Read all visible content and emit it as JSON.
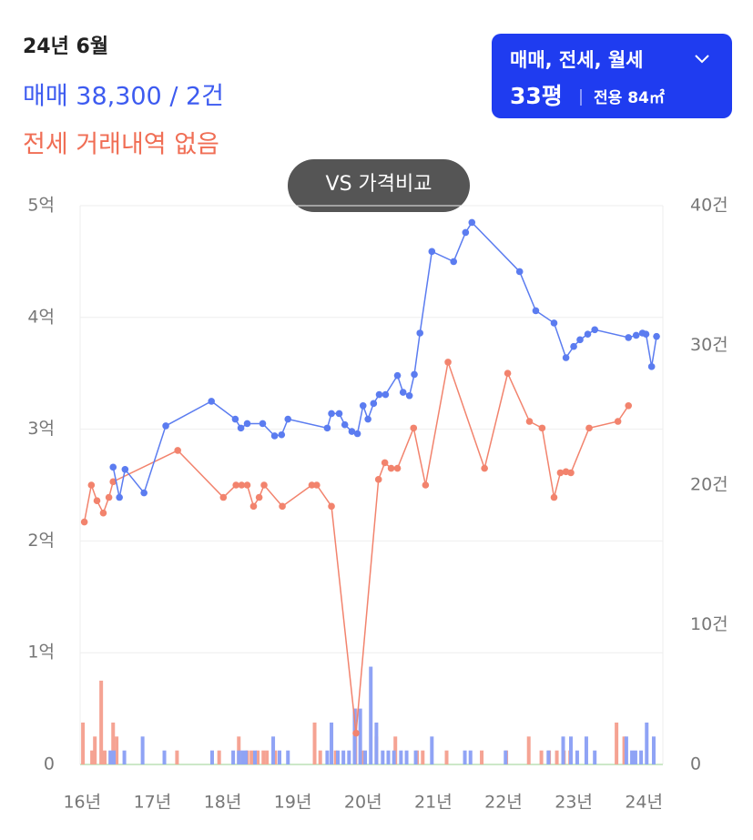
{
  "header": {
    "period": "24년 6월",
    "sale_summary": "매매 38,300 / 2건",
    "jeonse_summary": "전세 거래내역 없음",
    "filter_button": {
      "deal_types": "매매, 전세, 월세",
      "size_pyeong": "33평",
      "size_area": "전용 84㎡"
    },
    "compare_button": "VS 가격비교"
  },
  "chart_data": {
    "type": "line",
    "xlim": [
      15.97,
      24.27
    ],
    "xticks": [
      {
        "value": 16,
        "label": "16년"
      },
      {
        "value": 17,
        "label": "17년"
      },
      {
        "value": 18,
        "label": "18년"
      },
      {
        "value": 19,
        "label": "19년"
      },
      {
        "value": 20,
        "label": "20년"
      },
      {
        "value": 21,
        "label": "21년"
      },
      {
        "value": 22,
        "label": "22년"
      },
      {
        "value": 23,
        "label": "23년"
      },
      {
        "value": 24,
        "label": "24년"
      }
    ],
    "ylim": [
      0,
      50000
    ],
    "yticks": [
      0,
      {
        "value": 10000,
        "label": "1억"
      },
      {
        "value": 20000,
        "label": "2억"
      },
      {
        "value": 30000,
        "label": "3억"
      },
      {
        "value": 40000,
        "label": "4억"
      },
      {
        "value": 50000,
        "label": "5억"
      }
    ],
    "y2lim": [
      0,
      40
    ],
    "y2ticks": [
      0,
      {
        "value": 10,
        "label": "10건"
      },
      {
        "value": 20,
        "label": "20건"
      },
      {
        "value": 30,
        "label": "30건"
      },
      {
        "value": 40,
        "label": "40건"
      }
    ],
    "grid": true,
    "series": [
      {
        "type": "bar",
        "axis": "y2",
        "color": "#f5a393",
        "x": [
          16.01,
          16.14,
          16.18,
          16.27,
          16.32,
          16.44,
          16.49,
          17.35,
          17.95,
          18.23,
          18.35,
          18.41,
          18.5,
          18.58,
          18.63,
          18.75,
          19.31,
          19.39,
          19.61,
          19.89,
          19.99,
          20.19,
          20.46,
          20.77,
          20.85,
          21.19,
          21.69,
          22.04,
          22.36,
          22.54,
          22.65,
          22.76,
          22.86,
          22.95,
          23.61,
          23.72
        ],
        "values": [
          3,
          1,
          2,
          6,
          1,
          3,
          2,
          1,
          1,
          2,
          1,
          1,
          1,
          1,
          1,
          1,
          3,
          1,
          1,
          4,
          1,
          2,
          2,
          1,
          1,
          1,
          1,
          1,
          2,
          1,
          1,
          1,
          1,
          1,
          3,
          2
        ]
      },
      {
        "type": "bar",
        "axis": "y2",
        "color": "#8fa3f5",
        "x": [
          16.4,
          16.45,
          16.6,
          16.86,
          17.17,
          17.85,
          18.15,
          18.23,
          18.28,
          18.33,
          18.46,
          18.72,
          18.81,
          18.93,
          19.49,
          19.55,
          19.64,
          19.72,
          19.8,
          19.88,
          19.96,
          20.03,
          20.11,
          20.19,
          20.28,
          20.36,
          20.44,
          20.54,
          20.62,
          20.75,
          20.98,
          21.45,
          21.53,
          22.03,
          22.64,
          22.85,
          22.96,
          23.05,
          23.18,
          23.3,
          23.75,
          23.83,
          23.88,
          23.96,
          24.04,
          24.14
        ],
        "values": [
          1,
          1,
          1,
          2,
          1,
          1,
          1,
          1,
          1,
          1,
          1,
          2,
          1,
          1,
          1,
          3,
          1,
          1,
          1,
          4,
          4,
          1,
          7,
          3,
          1,
          1,
          1,
          1,
          1,
          1,
          2,
          1,
          1,
          1,
          1,
          2,
          2,
          1,
          2,
          1,
          2,
          1,
          1,
          1,
          3,
          2
        ]
      },
      {
        "type": "line",
        "color": "#f2836d",
        "x": [
          16.03,
          16.13,
          16.21,
          16.3,
          16.38,
          16.44,
          17.36,
          18.01,
          18.19,
          18.27,
          18.35,
          18.44,
          18.52,
          18.59,
          18.85,
          19.27,
          19.34,
          19.55,
          19.9,
          20.22,
          20.31,
          20.4,
          20.49,
          20.72,
          20.89,
          21.21,
          21.73,
          22.06,
          22.37,
          22.55,
          22.72,
          22.81,
          22.89,
          22.96,
          23.22,
          23.63,
          23.78
        ],
        "values": [
          21700,
          25000,
          23600,
          22500,
          23900,
          25300,
          28100,
          23900,
          25000,
          25000,
          25000,
          23100,
          23900,
          25000,
          23100,
          25000,
          25000,
          23100,
          2800,
          25500,
          27000,
          26500,
          26500,
          30100,
          25000,
          36000,
          26500,
          35000,
          30700,
          30100,
          23900,
          26100,
          26200,
          26100,
          30100,
          30700,
          32100
        ]
      },
      {
        "type": "line",
        "color": "#5b7cf0",
        "x": [
          16.44,
          16.53,
          16.61,
          16.88,
          17.19,
          17.84,
          18.18,
          18.26,
          18.35,
          18.57,
          18.74,
          18.84,
          18.93,
          19.49,
          19.55,
          19.66,
          19.74,
          19.84,
          19.92,
          20.0,
          20.07,
          20.15,
          20.23,
          20.32,
          20.49,
          20.57,
          20.66,
          20.73,
          20.81,
          20.98,
          21.29,
          21.46,
          21.55,
          22.23,
          22.46,
          22.72,
          22.89,
          23.0,
          23.09,
          23.2,
          23.3,
          23.78,
          23.89,
          23.98,
          24.03,
          24.11,
          24.18
        ],
        "values": [
          26600,
          23900,
          26400,
          24300,
          30300,
          32500,
          30900,
          30100,
          30500,
          30500,
          29400,
          29500,
          30900,
          30100,
          31400,
          31400,
          30400,
          29800,
          29600,
          32100,
          30900,
          32300,
          33100,
          33100,
          34800,
          33300,
          33000,
          34900,
          38600,
          45900,
          45000,
          47600,
          48500,
          44100,
          40600,
          39500,
          36400,
          37400,
          38000,
          38500,
          38900,
          38200,
          38400,
          38600,
          38500,
          35600,
          38300
        ]
      }
    ]
  }
}
